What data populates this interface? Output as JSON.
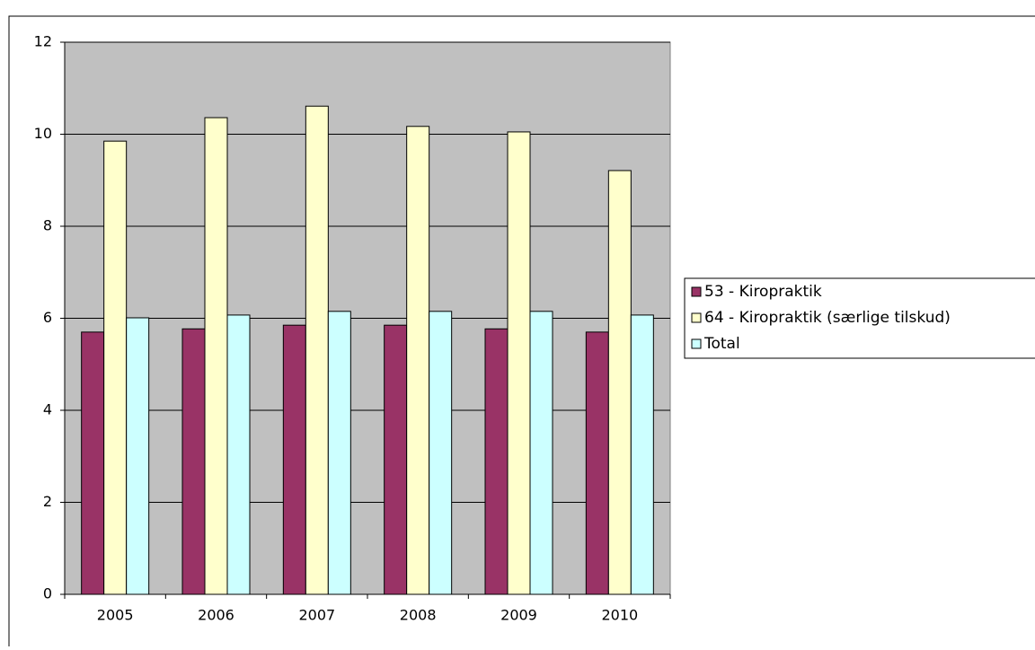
{
  "chart_data": {
    "type": "bar",
    "categories": [
      "2005",
      "2006",
      "2007",
      "2008",
      "2009",
      "2010"
    ],
    "series": [
      {
        "name": "53 - Kiropraktik",
        "color": "#993366",
        "values": [
          5.7,
          5.77,
          5.85,
          5.85,
          5.77,
          5.7
        ]
      },
      {
        "name": "64 - Kiropraktik (særlige tilskud)",
        "color": "#ffffcc",
        "values": [
          9.85,
          10.36,
          10.61,
          10.17,
          10.05,
          9.21
        ]
      },
      {
        "name": "Total",
        "color": "#ccffff",
        "values": [
          6.01,
          6.07,
          6.15,
          6.15,
          6.15,
          6.07
        ]
      }
    ],
    "ylim": [
      0,
      12
    ],
    "yticks": [
      0,
      2,
      4,
      6,
      8,
      10,
      12
    ],
    "grid": true,
    "legend": "right"
  }
}
